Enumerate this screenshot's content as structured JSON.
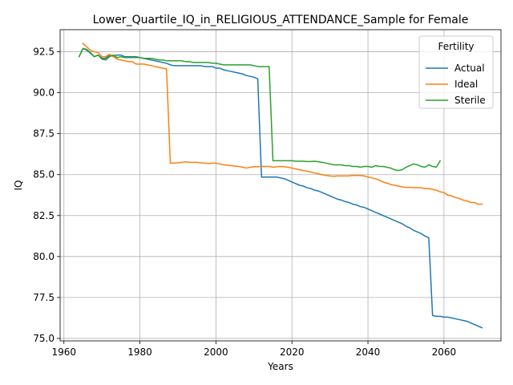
{
  "chart_data": {
    "type": "line",
    "title": "Lower_Quartile_IQ_in_RELIGIOUS_ATTENDANCE_Sample for Female",
    "xlabel": "Years",
    "ylabel": "IQ",
    "xlim": [
      1959,
      2075
    ],
    "ylim": [
      74.85,
      93.85
    ],
    "xticks": [
      1960,
      1980,
      2000,
      2020,
      2040,
      2060
    ],
    "yticks": [
      75.0,
      77.5,
      80.0,
      82.5,
      85.0,
      87.5,
      90.0,
      92.5
    ],
    "xtick_labels": [
      "1960",
      "1980",
      "2000",
      "2020",
      "2040",
      "2060"
    ],
    "ytick_labels": [
      "75.0",
      "77.5",
      "80.0",
      "82.5",
      "85.0",
      "87.5",
      "90.0",
      "92.5"
    ],
    "grid": true,
    "legend": {
      "title": "Fertility",
      "position": "top-right"
    },
    "series": [
      {
        "name": "Actual",
        "color": "#1f77b4",
        "x": [
          1964,
          1965,
          1966,
          1967,
          1968,
          1969,
          1970,
          1971,
          1972,
          1973,
          1974,
          1975,
          1976,
          1977,
          1978,
          1979,
          1980,
          1981,
          1982,
          1983,
          1984,
          1985,
          1986,
          1987,
          1988,
          1989,
          1990,
          1991,
          1992,
          1993,
          1994,
          1995,
          1996,
          1997,
          1998,
          1999,
          2000,
          2001,
          2002,
          2003,
          2004,
          2005,
          2006,
          2007,
          2008,
          2009,
          2010,
          2011,
          2012,
          2013,
          2014,
          2015,
          2016,
          2017,
          2018,
          2019,
          2020,
          2021,
          2022,
          2023,
          2024,
          2025,
          2026,
          2027,
          2028,
          2029,
          2030,
          2031,
          2032,
          2033,
          2034,
          2035,
          2036,
          2037,
          2038,
          2039,
          2040,
          2041,
          2042,
          2043,
          2044,
          2045,
          2046,
          2047,
          2048,
          2049,
          2050,
          2051,
          2052,
          2053,
          2054,
          2055,
          2056,
          2057,
          2058,
          2059,
          2060,
          2061,
          2062,
          2063,
          2064,
          2065,
          2066,
          2067,
          2068,
          2069,
          2070
        ],
        "y": [
          92.2,
          92.7,
          92.6,
          92.4,
          92.2,
          92.3,
          92.1,
          92.1,
          92.3,
          92.25,
          92.3,
          92.3,
          92.2,
          92.2,
          92.2,
          92.2,
          92.15,
          92.1,
          92.05,
          92.0,
          91.95,
          91.9,
          91.85,
          91.8,
          91.7,
          91.65,
          91.65,
          91.65,
          91.65,
          91.65,
          91.65,
          91.65,
          91.65,
          91.6,
          91.6,
          91.6,
          91.5,
          91.5,
          91.4,
          91.35,
          91.3,
          91.25,
          91.2,
          91.15,
          91.05,
          91.0,
          90.95,
          90.85,
          84.85,
          84.85,
          84.85,
          84.85,
          84.85,
          84.8,
          84.75,
          84.65,
          84.55,
          84.45,
          84.35,
          84.3,
          84.2,
          84.15,
          84.05,
          84.0,
          83.9,
          83.8,
          83.7,
          83.6,
          83.5,
          83.45,
          83.35,
          83.3,
          83.2,
          83.15,
          83.05,
          83.0,
          82.9,
          82.8,
          82.7,
          82.6,
          82.5,
          82.4,
          82.3,
          82.2,
          82.1,
          82.0,
          81.85,
          81.75,
          81.6,
          81.5,
          81.4,
          81.25,
          81.15,
          76.4,
          76.35,
          76.35,
          76.3,
          76.3,
          76.25,
          76.2,
          76.15,
          76.1,
          76.05,
          75.95,
          75.85,
          75.75,
          75.65
        ]
      },
      {
        "name": "Ideal",
        "color": "#ff7f0e",
        "x": [
          1965,
          1966,
          1967,
          1968,
          1969,
          1970,
          1971,
          1972,
          1973,
          1974,
          1975,
          1976,
          1977,
          1978,
          1979,
          1980,
          1981,
          1982,
          1983,
          1984,
          1985,
          1986,
          1987,
          1988,
          1989,
          1990,
          1991,
          1992,
          1993,
          1994,
          1995,
          1996,
          1997,
          1998,
          1999,
          2000,
          2001,
          2002,
          2003,
          2004,
          2005,
          2006,
          2007,
          2008,
          2009,
          2010,
          2011,
          2012,
          2013,
          2014,
          2015,
          2016,
          2017,
          2018,
          2019,
          2020,
          2021,
          2022,
          2023,
          2024,
          2025,
          2026,
          2027,
          2028,
          2029,
          2030,
          2031,
          2032,
          2033,
          2034,
          2035,
          2036,
          2037,
          2038,
          2039,
          2040,
          2041,
          2042,
          2043,
          2044,
          2045,
          2046,
          2047,
          2048,
          2049,
          2050,
          2051,
          2052,
          2053,
          2054,
          2055,
          2056,
          2057,
          2058,
          2059,
          2060,
          2061,
          2062,
          2063,
          2064,
          2065,
          2066,
          2067,
          2068,
          2069,
          2070
        ],
        "y": [
          93.0,
          92.8,
          92.6,
          92.5,
          92.45,
          92.2,
          92.2,
          92.35,
          92.2,
          92.05,
          92.0,
          91.95,
          91.9,
          91.9,
          91.75,
          91.75,
          91.75,
          91.7,
          91.65,
          91.6,
          91.55,
          91.5,
          91.45,
          85.7,
          85.7,
          85.72,
          85.75,
          85.78,
          85.75,
          85.75,
          85.75,
          85.72,
          85.7,
          85.68,
          85.7,
          85.7,
          85.65,
          85.6,
          85.58,
          85.55,
          85.52,
          85.5,
          85.45,
          85.4,
          85.45,
          85.48,
          85.48,
          85.5,
          85.5,
          85.5,
          85.45,
          85.48,
          85.5,
          85.48,
          85.45,
          85.4,
          85.35,
          85.3,
          85.25,
          85.2,
          85.15,
          85.1,
          85.05,
          85.0,
          84.95,
          84.92,
          84.9,
          84.92,
          84.92,
          84.92,
          84.92,
          84.95,
          84.95,
          84.95,
          84.92,
          84.85,
          84.8,
          84.75,
          84.65,
          84.55,
          84.48,
          84.4,
          84.35,
          84.3,
          84.25,
          84.22,
          84.22,
          84.2,
          84.2,
          84.2,
          84.15,
          84.15,
          84.1,
          84.05,
          83.95,
          83.9,
          83.75,
          83.7,
          83.6,
          83.55,
          83.45,
          83.4,
          83.3,
          83.3,
          83.2,
          83.2
        ]
      },
      {
        "name": "Sterile",
        "color": "#2ca02c",
        "x": [
          1964,
          1965,
          1966,
          1967,
          1968,
          1969,
          1970,
          1971,
          1972,
          1973,
          1974,
          1975,
          1976,
          1977,
          1978,
          1979,
          1980,
          1981,
          1982,
          1983,
          1984,
          1985,
          1986,
          1987,
          1988,
          1989,
          1990,
          1991,
          1992,
          1993,
          1994,
          1995,
          1996,
          1997,
          1998,
          1999,
          2000,
          2001,
          2002,
          2003,
          2004,
          2005,
          2006,
          2007,
          2008,
          2009,
          2010,
          2011,
          2012,
          2013,
          2014,
          2015,
          2016,
          2017,
          2018,
          2019,
          2020,
          2021,
          2022,
          2023,
          2024,
          2025,
          2026,
          2027,
          2028,
          2029,
          2030,
          2031,
          2032,
          2033,
          2034,
          2035,
          2036,
          2037,
          2038,
          2039,
          2040,
          2041,
          2042,
          2043,
          2044,
          2045,
          2046,
          2047,
          2048,
          2049,
          2050,
          2051,
          2052,
          2053,
          2054,
          2055,
          2056,
          2057,
          2058,
          2059
        ],
        "y": [
          92.2,
          92.7,
          92.65,
          92.45,
          92.2,
          92.3,
          92.05,
          92.0,
          92.2,
          92.3,
          92.15,
          92.2,
          92.15,
          92.15,
          92.15,
          92.15,
          92.15,
          92.1,
          92.1,
          92.1,
          92.05,
          92.0,
          92.0,
          91.95,
          91.95,
          91.95,
          91.95,
          91.95,
          91.9,
          91.9,
          91.85,
          91.85,
          91.85,
          91.85,
          91.85,
          91.8,
          91.8,
          91.75,
          91.7,
          91.7,
          91.7,
          91.7,
          91.7,
          91.7,
          91.7,
          91.7,
          91.65,
          91.6,
          91.6,
          91.6,
          91.6,
          85.85,
          85.85,
          85.85,
          85.85,
          85.85,
          85.85,
          85.82,
          85.82,
          85.82,
          85.8,
          85.8,
          85.82,
          85.78,
          85.75,
          85.7,
          85.65,
          85.6,
          85.6,
          85.6,
          85.55,
          85.55,
          85.5,
          85.5,
          85.45,
          85.5,
          85.5,
          85.45,
          85.55,
          85.5,
          85.5,
          85.45,
          85.4,
          85.3,
          85.25,
          85.3,
          85.45,
          85.55,
          85.65,
          85.6,
          85.5,
          85.45,
          85.6,
          85.5,
          85.45,
          85.85
        ]
      }
    ]
  }
}
